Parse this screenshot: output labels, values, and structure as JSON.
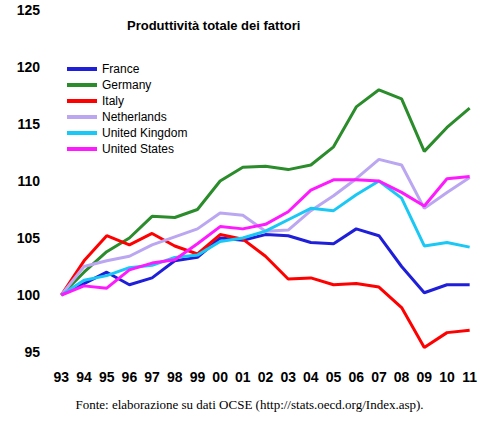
{
  "chart_data": {
    "type": "line",
    "title": "Produttività totale dei fattori",
    "annotations": [
      "Fonte: elaborazione su dati OCSE (http://stats.oecd.org/Index.asp)."
    ],
    "categories": [
      "93",
      "94",
      "95",
      "96",
      "97",
      "98",
      "99",
      "00",
      "01",
      "02",
      "03",
      "04",
      "05",
      "06",
      "07",
      "08",
      "09",
      "10",
      "11"
    ],
    "series": [
      {
        "name": "France",
        "color": "#1f1fd9",
        "values": [
          100,
          101,
          102,
          100.9,
          101.5,
          103,
          103.3,
          105,
          104.8,
          105.3,
          105.2,
          104.6,
          104.5,
          105.8,
          105.2,
          102.5,
          100.2,
          100.9,
          100.9
        ]
      },
      {
        "name": "Germany",
        "color": "#2a8c2a",
        "values": [
          100,
          102,
          103.8,
          105,
          106.9,
          106.8,
          107.5,
          110,
          111.2,
          111.3,
          111,
          111.4,
          113,
          116.5,
          118,
          117.2,
          112.6,
          114.7,
          116.4
        ]
      },
      {
        "name": "Italy",
        "color": "#ff0000",
        "values": [
          100,
          103,
          105.2,
          104.4,
          105.4,
          104.3,
          103.6,
          105.3,
          104.9,
          103.4,
          101.4,
          101.5,
          100.9,
          101,
          100.7,
          98.9,
          95.4,
          96.7,
          96.9
        ]
      },
      {
        "name": "Netherlands",
        "color": "#bba6f2",
        "values": [
          100,
          102.5,
          103,
          103.4,
          104.4,
          105.1,
          105.8,
          107.2,
          107,
          105.6,
          105.7,
          107.4,
          108.7,
          110.2,
          111.9,
          111.4,
          107.6,
          109,
          110.3
        ]
      },
      {
        "name": "United Kingdom",
        "color": "#19c8f5",
        "values": [
          100,
          101.3,
          101.7,
          102.4,
          102.6,
          103.3,
          103.5,
          104.7,
          105,
          105.6,
          106.6,
          107.6,
          107.4,
          108.8,
          110,
          108.5,
          104.3,
          104.6,
          104.2
        ]
      },
      {
        "name": "United States",
        "color": "#ff19ff",
        "values": [
          100,
          100.8,
          100.6,
          102.2,
          102.8,
          103.1,
          104.5,
          106,
          105.8,
          106.2,
          107.3,
          109.2,
          110.1,
          110.1,
          110,
          109,
          107.8,
          110.2,
          110.4
        ]
      }
    ],
    "ylim": [
      95,
      125
    ],
    "yticks": [
      95,
      100,
      105,
      110,
      115,
      120,
      125
    ],
    "grid": false,
    "legend": "top-left"
  }
}
